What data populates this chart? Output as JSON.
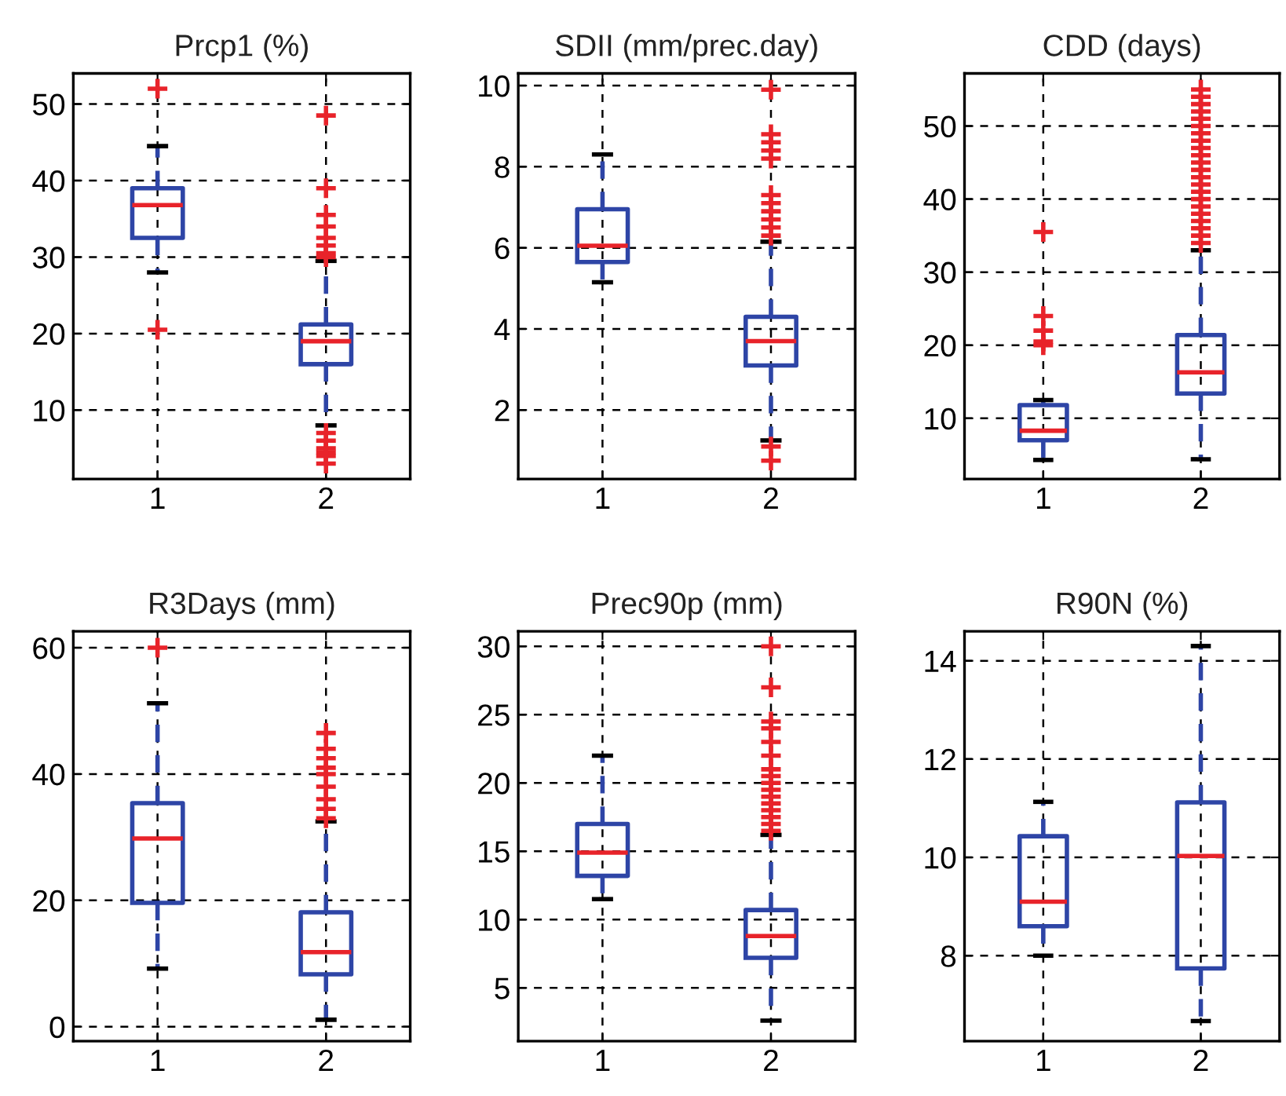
{
  "chart_data": [
    {
      "type": "box",
      "title": "Prcp1 (%)",
      "categories": [
        "1",
        "2"
      ],
      "ylim": [
        1,
        54
      ],
      "yticks": [
        10,
        20,
        30,
        40,
        50
      ],
      "grid": true,
      "marker": "cross",
      "series": [
        {
          "color": "#2e45a6",
          "boxes": [
            {
              "low": 28,
              "q1": 32.5,
              "median": 36.8,
              "q3": 39,
              "high": 44.5,
              "outliers": [
                52,
                20.5
              ]
            },
            {
              "low": 8,
              "q1": 16,
              "median": 19,
              "q3": 21.2,
              "high": 29.5,
              "outliers": [
                48.5,
                39,
                35.5,
                34,
                32.5,
                31.5,
                30.5,
                30,
                7,
                6,
                5,
                4.5,
                4,
                3
              ]
            }
          ]
        }
      ]
    },
    {
      "type": "box",
      "title": "SDII (mm/prec.day)",
      "categories": [
        "1",
        "2"
      ],
      "ylim": [
        0.3,
        10.3
      ],
      "yticks": [
        2,
        4,
        6,
        8,
        10
      ],
      "grid": true,
      "marker": "cross",
      "series": [
        {
          "color": "#2e45a6",
          "boxes": [
            {
              "low": 5.15,
              "q1": 5.65,
              "median": 6.05,
              "q3": 6.95,
              "high": 8.3
            },
            {
              "low": 1.25,
              "q1": 3.1,
              "median": 3.7,
              "q3": 4.3,
              "high": 6.15,
              "outliers": [
                9.9,
                8.8,
                8.6,
                8.4,
                8.2,
                7.3,
                7.1,
                6.9,
                6.7,
                6.5,
                6.3,
                1.1,
                0.75
              ]
            }
          ]
        }
      ]
    },
    {
      "type": "box",
      "title": "CDD (days)",
      "categories": [
        "1",
        "2"
      ],
      "ylim": [
        1.7,
        57.2
      ],
      "yticks": [
        10,
        20,
        30,
        40,
        50
      ],
      "grid": true,
      "marker": "cross",
      "series": [
        {
          "color": "#2e45a6",
          "boxes": [
            {
              "low": 4.3,
              "q1": 7,
              "median": 8.3,
              "q3": 11.8,
              "high": 12.5,
              "outliers": [
                35.5,
                24,
                22,
                20.5,
                20
              ]
            },
            {
              "low": 4.4,
              "q1": 13.4,
              "median": 16.3,
              "q3": 21.4,
              "high": 33,
              "outliers": [
                34,
                35,
                36,
                37,
                38,
                39,
                40,
                41,
                42,
                43,
                44,
                45,
                46,
                47,
                48,
                49,
                50,
                51,
                52,
                53,
                54,
                55
              ]
            }
          ]
        }
      ]
    },
    {
      "type": "box",
      "title": "R3Days (mm)",
      "categories": [
        "1",
        "2"
      ],
      "ylim": [
        -2.3,
        62.6
      ],
      "yticks": [
        0,
        20,
        40,
        60
      ],
      "grid": true,
      "marker": "cross",
      "series": [
        {
          "color": "#2e45a6",
          "boxes": [
            {
              "low": 9.2,
              "q1": 19.6,
              "median": 29.8,
              "q3": 35.4,
              "high": 51.2,
              "outliers": [
                60
              ]
            },
            {
              "low": 1.1,
              "q1": 8.3,
              "median": 11.8,
              "q3": 18.1,
              "high": 32.5,
              "outliers": [
                46.5,
                44,
                42.5,
                41,
                40,
                38,
                36,
                34.5,
                33
              ]
            }
          ]
        }
      ]
    },
    {
      "type": "box",
      "title": "Prec90p (mm)",
      "categories": [
        "1",
        "2"
      ],
      "ylim": [
        1.1,
        31.1
      ],
      "yticks": [
        5,
        10,
        15,
        20,
        25,
        30
      ],
      "grid": true,
      "marker": "cross",
      "series": [
        {
          "color": "#2e45a6",
          "boxes": [
            {
              "low": 11.5,
              "q1": 13.2,
              "median": 14.9,
              "q3": 17,
              "high": 22
            },
            {
              "low": 2.6,
              "q1": 7.2,
              "median": 8.8,
              "q3": 10.7,
              "high": 16.2,
              "outliers": [
                30,
                27,
                24.5,
                24,
                23,
                22,
                21,
                20.5,
                20,
                19.5,
                19,
                18.5,
                18,
                17.5,
                17,
                16.5
              ]
            }
          ]
        }
      ]
    },
    {
      "type": "box",
      "title": "R90N (%)",
      "categories": [
        "1",
        "2"
      ],
      "ylim": [
        6.26,
        14.6
      ],
      "yticks": [
        8,
        10,
        12,
        14
      ],
      "grid": true,
      "marker": "cross",
      "series": [
        {
          "color": "#2e45a6",
          "boxes": [
            {
              "low": 8.0,
              "q1": 8.6,
              "median": 9.1,
              "q3": 10.43,
              "high": 11.13
            },
            {
              "low": 6.67,
              "q1": 7.74,
              "median": 10.03,
              "q3": 11.12,
              "high": 14.3
            }
          ]
        }
      ]
    }
  ]
}
